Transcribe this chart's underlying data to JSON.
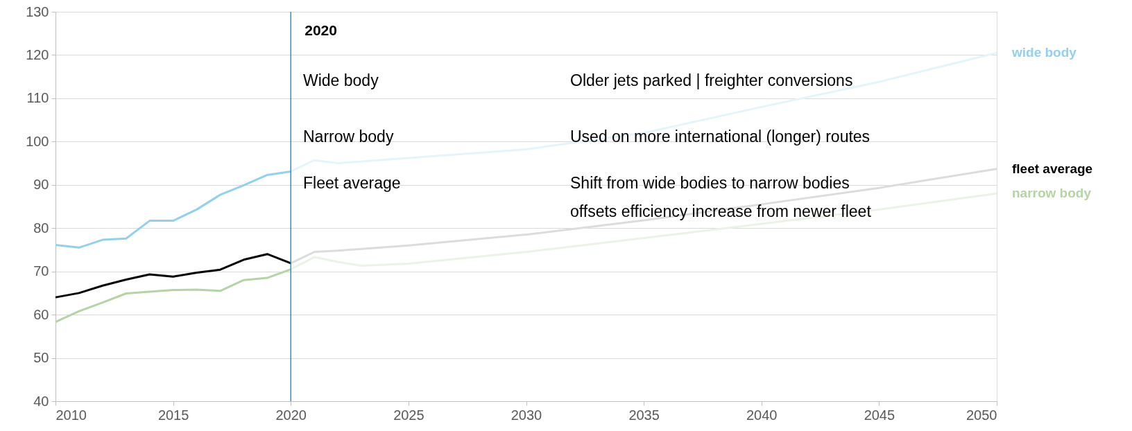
{
  "chart_data": {
    "type": "line",
    "xlim": [
      2010,
      2050
    ],
    "xticks": [
      2010,
      2015,
      2020,
      2025,
      2030,
      2035,
      2040,
      2045,
      2050
    ],
    "ylim": [
      40,
      130
    ],
    "yticks": [
      40,
      50,
      60,
      70,
      80,
      90,
      100,
      110,
      120,
      130
    ],
    "grid": "y",
    "series": [
      {
        "name": "wide body",
        "color": "#92d1ee",
        "x": [
          2010,
          2011,
          2012,
          2013,
          2014,
          2015,
          2016,
          2017,
          2018,
          2019,
          2020
        ],
        "values": [
          76.1,
          75.5,
          77.3,
          77.6,
          81.7,
          81.7,
          84.3,
          87.7,
          89.9,
          92.3,
          93.1
        ]
      },
      {
        "color": "#e4f4fb",
        "x": [
          2020,
          2021,
          2022,
          2025,
          2030,
          2035,
          2040,
          2045,
          2050
        ],
        "values": [
          93.1,
          95.7,
          95.0,
          96.2,
          98.2,
          102,
          108,
          113.8,
          120.5
        ]
      },
      {
        "name": "fleet average",
        "color": "#000000",
        "x": [
          2010,
          2011,
          2012,
          2013,
          2014,
          2015,
          2016,
          2017,
          2018,
          2019,
          2020
        ],
        "values": [
          64.0,
          65.0,
          66.7,
          68.1,
          69.3,
          68.8,
          69.7,
          70.4,
          72.7,
          74.0,
          71.9
        ]
      },
      {
        "color": "#dcdcdc",
        "x": [
          2020,
          2021,
          2022,
          2025,
          2030,
          2035,
          2040,
          2045,
          2050
        ],
        "values": [
          71.9,
          74.5,
          74.8,
          76.0,
          78.5,
          81.8,
          85.5,
          89.3,
          93.7
        ]
      },
      {
        "name": "narrow body",
        "color": "#b5d4a5",
        "x": [
          2010,
          2011,
          2012,
          2013,
          2014,
          2015,
          2016,
          2017,
          2018,
          2019,
          2020
        ],
        "values": [
          58.3,
          60.8,
          62.8,
          64.9,
          65.3,
          65.7,
          65.8,
          65.5,
          68.0,
          68.5,
          70.5
        ]
      },
      {
        "color": "#ebf2e6",
        "x": [
          2020,
          2021,
          2022,
          2023,
          2025,
          2030,
          2035,
          2040,
          2045,
          2050
        ],
        "values": [
          70.5,
          73.3,
          72.2,
          71.3,
          71.8,
          74.5,
          77.7,
          81.0,
          84.3,
          88.0
        ]
      }
    ],
    "ref_lines": [
      {
        "axis": "x",
        "value": 2020,
        "label": "2020",
        "color": "#1a9ad6"
      }
    ],
    "annotations": [
      "Wide body",
      "Older jets parked | freighter conversions",
      "Narrow body",
      "Used on more international (longer) routes",
      "Fleet average",
      "Shift from wide bodies to narrow bodies\noffsets efficiency increase from newer fleet"
    ]
  }
}
